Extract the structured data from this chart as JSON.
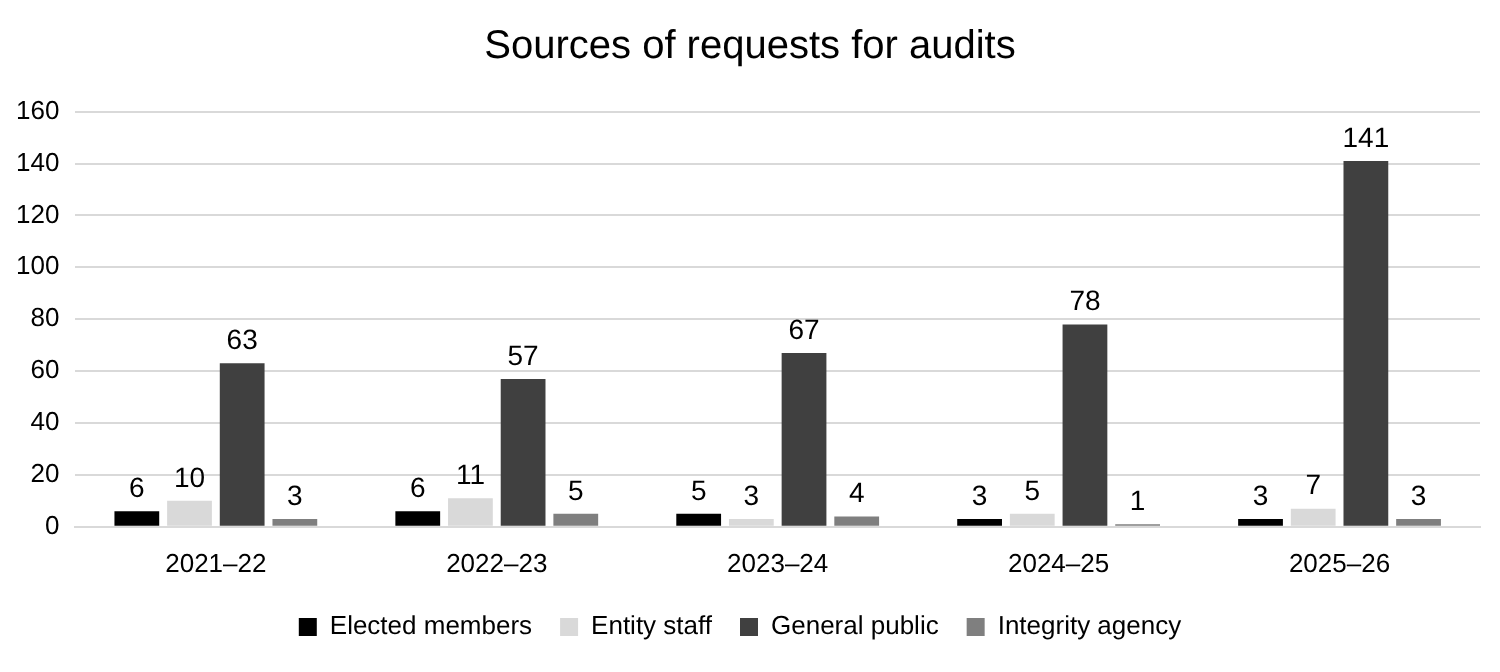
{
  "chart_data": {
    "type": "bar",
    "title": "Sources of requests for audits",
    "categories": [
      "2021–22",
      "2022–23",
      "2023–24",
      "2024–25",
      "2025–26"
    ],
    "series": [
      {
        "name": "Elected members",
        "color": "#000000",
        "values": [
          6,
          6,
          5,
          3,
          3
        ]
      },
      {
        "name": "Entity staff",
        "color": "#d9d9d9",
        "values": [
          10,
          11,
          3,
          5,
          7
        ]
      },
      {
        "name": "General public",
        "color": "#404040",
        "values": [
          63,
          57,
          67,
          78,
          141
        ]
      },
      {
        "name": "Integrity agency",
        "color": "#7f7f7f",
        "values": [
          3,
          5,
          4,
          1,
          3
        ]
      }
    ],
    "ylim": [
      0,
      160
    ],
    "yticks": [
      0,
      20,
      40,
      60,
      80,
      100,
      120,
      140,
      160
    ],
    "grid": "y",
    "legend": "bottom",
    "data_labels": true
  }
}
